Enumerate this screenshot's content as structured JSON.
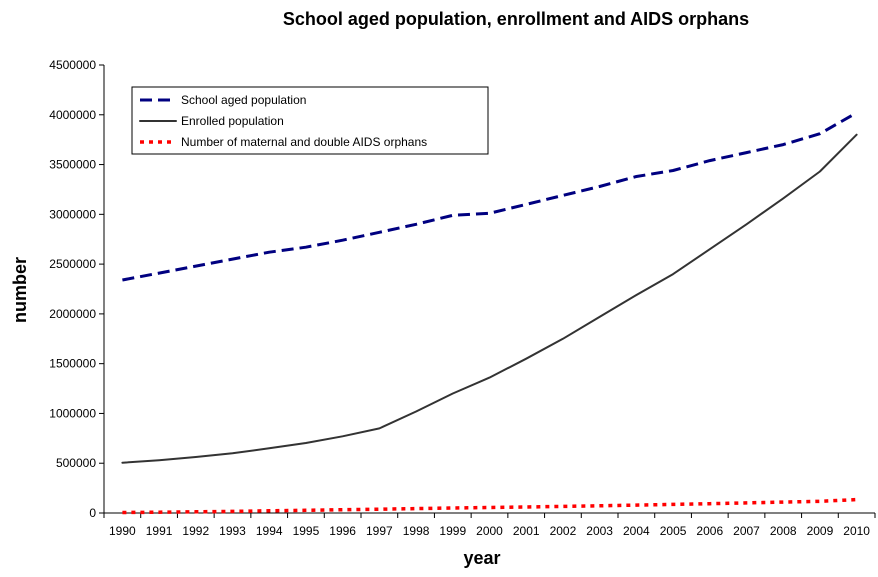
{
  "chart_data": {
    "type": "line",
    "title": "School aged population, enrollment and AIDS orphans",
    "xlabel": "year",
    "ylabel": "number",
    "x": [
      "1990",
      "1991",
      "1992",
      "1993",
      "1994",
      "1995",
      "1996",
      "1997",
      "1998",
      "1999",
      "2000",
      "2001",
      "2002",
      "2003",
      "2004",
      "2005",
      "2006",
      "2007",
      "2008",
      "2009",
      "2010"
    ],
    "ylim": [
      0,
      4500000
    ],
    "yticks": [
      0,
      500000,
      1000000,
      1500000,
      2000000,
      2500000,
      3000000,
      3500000,
      4000000,
      4500000
    ],
    "ytick_labels": [
      "0",
      "500000",
      "1000000",
      "1500000",
      "2000000",
      "2500000",
      "3000000",
      "3500000",
      "4000000",
      "4500000"
    ],
    "grid": false,
    "legend_position": "top-left",
    "series": [
      {
        "name": "School aged population",
        "color": "#000080",
        "style": "dashed",
        "values": [
          2340000,
          2410000,
          2480000,
          2550000,
          2620000,
          2670000,
          2740000,
          2820000,
          2900000,
          2990000,
          3010000,
          3100000,
          3190000,
          3280000,
          3380000,
          3440000,
          3540000,
          3620000,
          3700000,
          3810000,
          4020000
        ]
      },
      {
        "name": "Enrolled population",
        "color": "#333333",
        "style": "solid",
        "values": [
          505000,
          530000,
          563000,
          600000,
          650000,
          703000,
          770000,
          850000,
          1020000,
          1200000,
          1360000,
          1550000,
          1750000,
          1970000,
          2190000,
          2400000,
          2650000,
          2900000,
          3160000,
          3430000,
          3800000
        ]
      },
      {
        "name": "Number of maternal and double AIDS orphans",
        "color": "#ff0000",
        "style": "dotted",
        "values": [
          5000,
          8000,
          12000,
          16000,
          22000,
          27000,
          33000,
          38000,
          44000,
          50000,
          55000,
          60000,
          66000,
          72000,
          79000,
          86000,
          93000,
          101000,
          109000,
          118000,
          135000
        ]
      }
    ]
  }
}
